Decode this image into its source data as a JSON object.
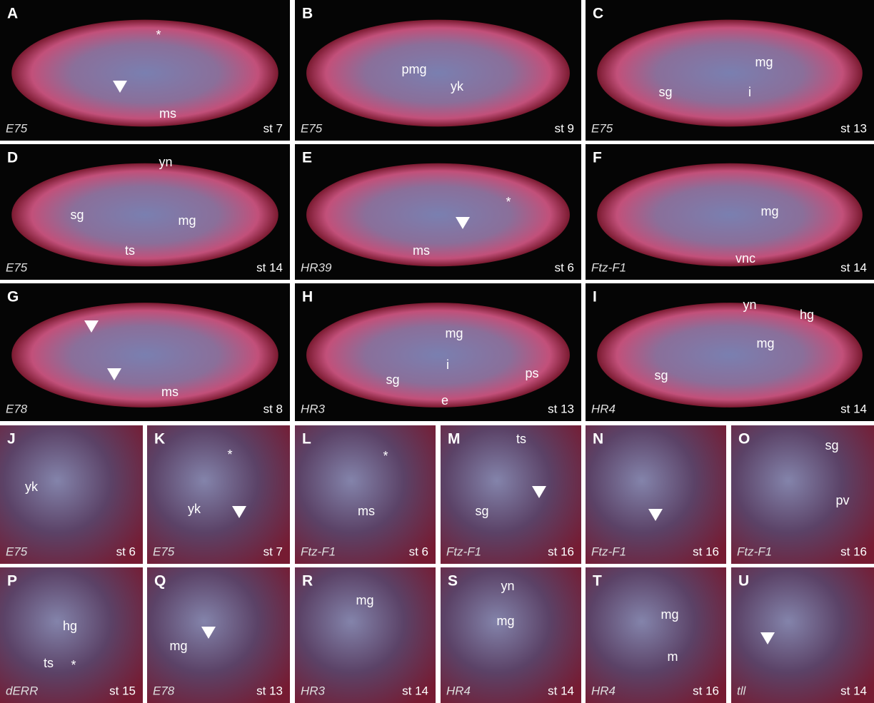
{
  "panels": [
    {
      "letter": "A",
      "gene": "E75",
      "stage": "st 7",
      "labels": [
        "*",
        "ms"
      ]
    },
    {
      "letter": "B",
      "gene": "E75",
      "stage": "st 9",
      "labels": [
        "pmg",
        "yk"
      ]
    },
    {
      "letter": "C",
      "gene": "E75",
      "stage": "st 13",
      "labels": [
        "mg",
        "sg",
        "i"
      ]
    },
    {
      "letter": "D",
      "gene": "E75",
      "stage": "st 14",
      "labels": [
        "yn",
        "sg",
        "mg",
        "ts"
      ]
    },
    {
      "letter": "E",
      "gene": "HR39",
      "stage": "st 6",
      "labels": [
        "*",
        "ms"
      ]
    },
    {
      "letter": "F",
      "gene": "Ftz-F1",
      "stage": "st 14",
      "labels": [
        "mg",
        "vnc"
      ]
    },
    {
      "letter": "G",
      "gene": "E78",
      "stage": "st 8",
      "labels": [
        "ms"
      ]
    },
    {
      "letter": "H",
      "gene": "HR3",
      "stage": "st 13",
      "labels": [
        "mg",
        "i",
        "ps",
        "sg",
        "e"
      ]
    },
    {
      "letter": "I",
      "gene": "HR4",
      "stage": "st 14",
      "labels": [
        "yn",
        "hg",
        "mg",
        "sg"
      ]
    },
    {
      "letter": "J",
      "gene": "E75",
      "stage": "st 6",
      "labels": [
        "yk"
      ]
    },
    {
      "letter": "K",
      "gene": "E75",
      "stage": "st 7",
      "labels": [
        "*",
        "yk"
      ]
    },
    {
      "letter": "L",
      "gene": "Ftz-F1",
      "stage": "st 6",
      "labels": [
        "*",
        "ms"
      ]
    },
    {
      "letter": "M",
      "gene": "Ftz-F1",
      "stage": "st 16",
      "labels": [
        "ts",
        "sg"
      ]
    },
    {
      "letter": "N",
      "gene": "Ftz-F1",
      "stage": "st 16",
      "labels": []
    },
    {
      "letter": "O",
      "gene": "Ftz-F1",
      "stage": "st 16",
      "labels": [
        "sg",
        "pv"
      ]
    },
    {
      "letter": "P",
      "gene": "dERR",
      "stage": "st 15",
      "labels": [
        "hg",
        "ts",
        "*"
      ]
    },
    {
      "letter": "Q",
      "gene": "E78",
      "stage": "st 13",
      "labels": [
        "mg"
      ]
    },
    {
      "letter": "R",
      "gene": "HR3",
      "stage": "st 14",
      "labels": [
        "mg"
      ]
    },
    {
      "letter": "S",
      "gene": "HR4",
      "stage": "st 14",
      "labels": [
        "yn",
        "mg"
      ]
    },
    {
      "letter": "T",
      "gene": "HR4",
      "stage": "st 16",
      "labels": [
        "mg",
        "m"
      ]
    },
    {
      "letter": "U",
      "gene": "tll",
      "stage": "st 14",
      "labels": []
    }
  ]
}
